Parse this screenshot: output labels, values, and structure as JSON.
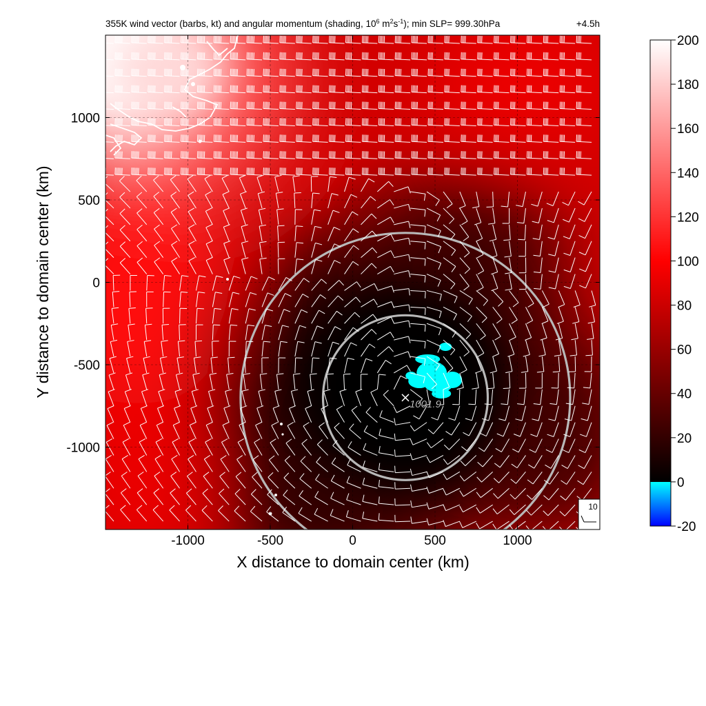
{
  "chart_data": {
    "type": "heatmap",
    "title": "355K wind vector (barbs, kt) and angular momentum (shading, 10",
    "title_sup1": "6",
    "title_mid": " m",
    "title_sup2": "2",
    "title_mid2": "s",
    "title_sup3": "-1",
    "title_end": "); min SLP= 999.30hPa",
    "forecast_time": "+4.5h",
    "xlabel": "X distance to domain center (km)",
    "ylabel": "Y distance to domain center (km)",
    "xlim": [
      -1500,
      1500
    ],
    "ylim": [
      -1500,
      1500
    ],
    "xticks": [
      -1000,
      -500,
      0,
      500,
      1000
    ],
    "yticks": [
      -1000,
      -500,
      0,
      500,
      1000
    ],
    "xtick_labels": [
      "-1000",
      "-500",
      "0",
      "500",
      "1000"
    ],
    "ytick_labels": [
      "-1000",
      "-500",
      "0",
      "500",
      "1000"
    ],
    "grid": true,
    "colorbar": {
      "ticks": [
        200,
        180,
        160,
        140,
        120,
        100,
        80,
        60,
        40,
        20,
        0,
        -20
      ],
      "tick_labels": [
        "200",
        "180",
        "160",
        "140",
        "120",
        "100",
        "80",
        "60",
        "40",
        "20",
        "0",
        "-20"
      ],
      "range": [
        -20,
        200
      ],
      "stops": [
        {
          "value": 200,
          "color": "#ffffff"
        },
        {
          "value": 100,
          "color": "#ff0000"
        },
        {
          "value": 0,
          "color": "#000000"
        },
        {
          "value": -0.01,
          "color": "#00ffff"
        },
        {
          "value": -20,
          "color": "#0000ff"
        }
      ]
    },
    "storm_center": {
      "x": 320,
      "y": -700,
      "label": "1001.9"
    },
    "circles_km": [
      500,
      1000
    ],
    "reference_barb": {
      "label": "10"
    },
    "negative_region_center": {
      "x": 480,
      "y": -550
    },
    "annotation_colors": {
      "circle": "#b8b8b8",
      "coastline": "#ffffff",
      "barb": "#ffffff",
      "negative": "#00ffff"
    }
  }
}
